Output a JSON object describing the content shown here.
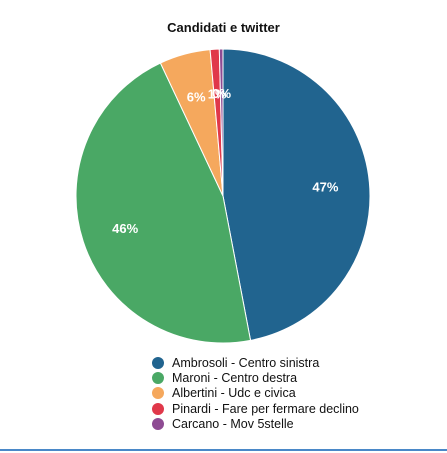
{
  "chart_data": {
    "type": "pie",
    "title": "Candidati e twitter",
    "slices": [
      {
        "name": "Ambrosoli - Centro sinistra",
        "value": 47,
        "label": "47%",
        "color": "#21648f"
      },
      {
        "name": "Maroni - Centro destra",
        "value": 46,
        "label": "46%",
        "color": "#4aa865"
      },
      {
        "name": "Albertini - Udc e civica",
        "value": 5.6,
        "label": "6%",
        "color": "#f5a85d"
      },
      {
        "name": "Pinardi - Fare per fermare declino",
        "value": 1,
        "label": "1%",
        "color": "#e0384a"
      },
      {
        "name": "Carcano - Mov 5stelle",
        "value": 0.4,
        "label": "0%",
        "color": "#8e4b93"
      }
    ],
    "legend_position": "bottom"
  }
}
